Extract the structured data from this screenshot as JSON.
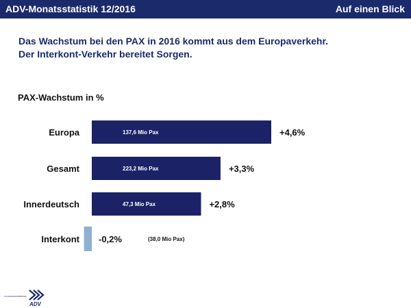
{
  "header": {
    "title": "ADV-Monatsstatistik 12/2016",
    "right_label": "Auf einen Blick",
    "background": "#1b2a6b"
  },
  "headline": {
    "line1": "Das Wachstum bei den PAX in 2016 kommt aus dem Europaverkehr.",
    "line2": "Der Interkont-Verkehr bereitet Sorgen."
  },
  "logo": {
    "text": "ADV",
    "small_text": "FLUGHAFENVERBAND",
    "icon": "adv-chevron-logo"
  },
  "chart_data": {
    "type": "bar",
    "orientation": "horizontal",
    "title": "PAX-Wachstum in %",
    "categories": [
      "Europa",
      "Gesamt",
      "Innerdeutsch",
      "Interkont"
    ],
    "values": [
      4.6,
      3.3,
      2.8,
      -0.2
    ],
    "value_labels": [
      "+4,6%",
      "+3,3%",
      "+2,8%",
      "-0,2%"
    ],
    "bar_labels": [
      "137,6 Mio Pax",
      "223,2 Mio Pax",
      "47,3 Mio Pax",
      "(38,0 Mio Pax)"
    ],
    "colors": {
      "positive": "#1b2366",
      "negative": "#8fb0cf"
    },
    "xlim": [
      -0.2,
      4.6
    ],
    "grid": false,
    "legend": "none"
  }
}
